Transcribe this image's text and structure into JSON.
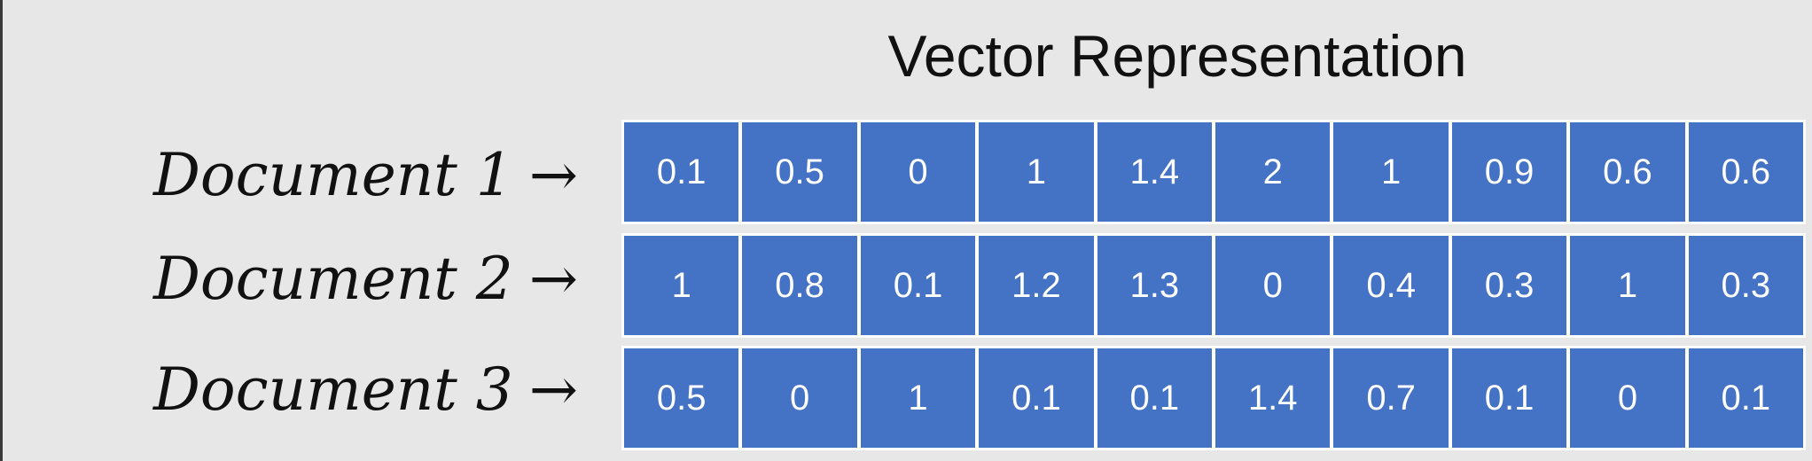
{
  "title": "Vector Representation",
  "rows": [
    {
      "label": "Document 1",
      "arrow": "→",
      "values": [
        "0.1",
        "0.5",
        "0",
        "1",
        "1.4",
        "2",
        "1",
        "0.9",
        "0.6",
        "0.6"
      ]
    },
    {
      "label": "Document 2",
      "arrow": "→",
      "values": [
        "1",
        "0.8",
        "0.1",
        "1.2",
        "1.3",
        "0",
        "0.4",
        "0.3",
        "1",
        "0.3"
      ]
    },
    {
      "label": "Document 3",
      "arrow": "→",
      "values": [
        "0.5",
        "0",
        "1",
        "0.1",
        "0.1",
        "1.4",
        "0.7",
        "0.1",
        "0",
        "0.1"
      ]
    }
  ],
  "colors": {
    "cell_fill": "#4472c4",
    "cell_text": "#ffffff",
    "background": "#e7e7e7"
  }
}
